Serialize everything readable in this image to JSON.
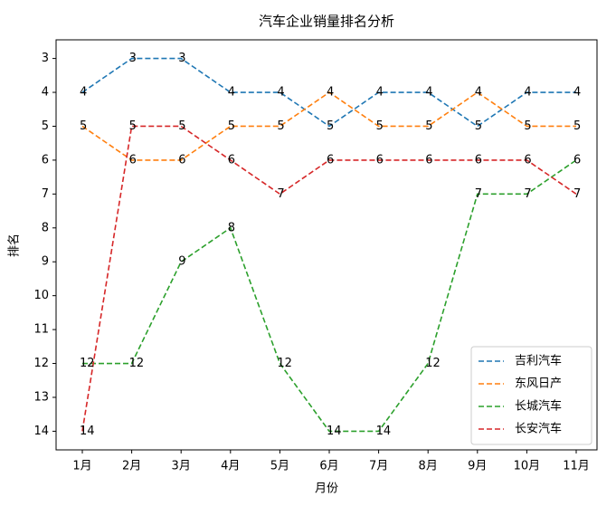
{
  "chart_data": {
    "type": "line",
    "title": "汽车企业销量排名分析",
    "x_label": "月份",
    "y_label": "排名",
    "categories": [
      "1月",
      "2月",
      "3月",
      "4月",
      "5月",
      "6月",
      "7月",
      "8月",
      "9月",
      "10月",
      "11月"
    ],
    "series": [
      {
        "name": "吉利汽车",
        "color": "#1f77b4",
        "values": [
          4,
          3,
          3,
          4,
          4,
          5,
          4,
          4,
          5,
          4,
          4
        ]
      },
      {
        "name": "东风日产",
        "color": "#ff7f0e",
        "values": [
          5,
          6,
          6,
          5,
          5,
          4,
          5,
          5,
          4,
          5,
          5
        ]
      },
      {
        "name": "长城汽车",
        "color": "#2ca02c",
        "values": [
          12,
          12,
          9,
          8,
          12,
          14,
          14,
          12,
          7,
          7,
          6
        ]
      },
      {
        "name": "长安汽车",
        "color": "#d62728",
        "values": [
          14,
          5,
          5,
          6,
          7,
          6,
          6,
          6,
          6,
          6,
          7
        ]
      }
    ],
    "ylim": [
      14.55,
      2.45
    ],
    "yticks": [
      3,
      4,
      5,
      6,
      7,
      8,
      9,
      10,
      11,
      12,
      13,
      14
    ],
    "line_style": "dashed",
    "data_labels": true,
    "legend": "lower right"
  }
}
